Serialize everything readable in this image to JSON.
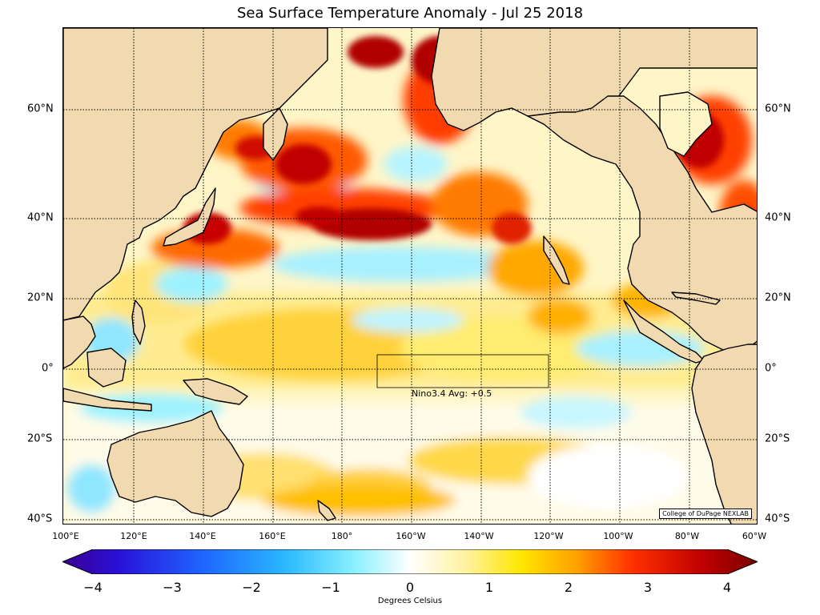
{
  "title": "Sea Surface Temperature Anomaly - Jul 25 2018",
  "lat_labels": [
    "60°N",
    "40°N",
    "20°N",
    "0°",
    "20°S",
    "40°S"
  ],
  "lon_labels": [
    "100°E",
    "120°E",
    "140°E",
    "160°E",
    "180°",
    "160°W",
    "140°W",
    "120°W",
    "100°W",
    "80°W",
    "60°W"
  ],
  "nino_box_label": "Nino3.4 Avg: +0.5",
  "credit": "College of DuPage NEXLAB",
  "colorbar": {
    "ticks": [
      "−4",
      "−3",
      "−2",
      "−1",
      "0",
      "1",
      "2",
      "3",
      "4"
    ],
    "label": "Degrees Celsius",
    "range": [
      -4,
      4
    ],
    "extend": "both"
  },
  "colors": {
    "land": "#f2dab0",
    "ocean_neutral": "#ffffff",
    "strong_warm": "#a00000",
    "warm": "#ff3c00",
    "mild_warm": "#ffc800",
    "cool": "#9ef2ff",
    "strong_cool": "#1f6fff",
    "coast": "#000000"
  }
}
